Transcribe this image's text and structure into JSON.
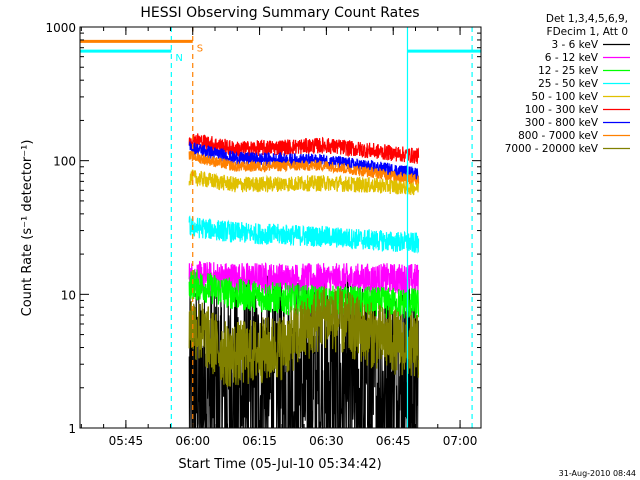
{
  "chart_data": {
    "type": "line",
    "title": "HESSI Observing Summary Count Rates",
    "xlabel": "Start Time (05-Jul-10 05:34:42)",
    "ylabel": "Count Rate (s⁻¹ detector⁻¹)",
    "x_unit": "minutes after 05:34:42",
    "xlim": [
      0,
      90
    ],
    "ylim": [
      1,
      1000
    ],
    "yscale": "log",
    "xticks": [
      {
        "label": "05:45",
        "value": 10.3
      },
      {
        "label": "06:00",
        "value": 25.3
      },
      {
        "label": "06:15",
        "value": 40.3
      },
      {
        "label": "06:30",
        "value": 55.3
      },
      {
        "label": "06:45",
        "value": 70.3
      },
      {
        "label": "07:00",
        "value": 85.3
      }
    ],
    "yticks": [
      {
        "label": "1",
        "value": 1
      },
      {
        "label": "10",
        "value": 10
      },
      {
        "label": "100",
        "value": 100
      },
      {
        "label": "1000",
        "value": 1000
      }
    ],
    "legend": {
      "header": [
        "Det 1,3,4,5,6,9,",
        "FDecim 1, Att 0"
      ],
      "placement": "right"
    },
    "series": [
      {
        "name": "3 - 6 keV",
        "color": "#000000",
        "start": 24.5,
        "end": 76.0,
        "values": [
          [
            25,
            1.8
          ],
          [
            76,
            1.8
          ]
        ],
        "noise": 0.9
      },
      {
        "name": "6 - 12 keV",
        "color": "#ff00ff",
        "start": 24.5,
        "end": 76.0,
        "values": [
          [
            25,
            13.5
          ],
          [
            50,
            13
          ],
          [
            76,
            13
          ]
        ],
        "noise": 0.12
      },
      {
        "name": "12 - 25 keV",
        "color": "#00ff00",
        "start": 24.5,
        "end": 76.0,
        "values": [
          [
            25,
            12
          ],
          [
            35,
            10
          ],
          [
            50,
            9
          ],
          [
            76,
            8.5
          ]
        ],
        "noise": 0.12
      },
      {
        "name": "25 - 50 keV",
        "color": "#00ffff",
        "start": 24.5,
        "end": 76.0,
        "values": [
          [
            25,
            32
          ],
          [
            35,
            29
          ],
          [
            55,
            27
          ],
          [
            76,
            24
          ]
        ],
        "noise": 0.08
      },
      {
        "name": "50 - 100 keV",
        "color": "#e0c000",
        "start": 24.5,
        "end": 76.0,
        "values": [
          [
            25,
            75
          ],
          [
            35,
            66
          ],
          [
            55,
            68
          ],
          [
            76,
            63
          ]
        ],
        "noise": 0.06
      },
      {
        "name": "100 - 300 keV",
        "color": "#ff0000",
        "start": 24.5,
        "end": 76.0,
        "values": [
          [
            25,
            145
          ],
          [
            35,
            122
          ],
          [
            55,
            130
          ],
          [
            76,
            108
          ]
        ],
        "noise": 0.06
      },
      {
        "name": "300 - 800 keV",
        "color": "#0000ff",
        "start": 24.5,
        "end": 76.0,
        "values": [
          [
            25,
            125
          ],
          [
            35,
            104
          ],
          [
            55,
            100
          ],
          [
            76,
            80
          ]
        ],
        "noise": 0.05
      },
      {
        "name": "800 - 7000 keV",
        "color": "#ff8000",
        "start": 24.5,
        "end": 76.0,
        "values": [
          [
            25,
            108
          ],
          [
            35,
            90
          ],
          [
            55,
            92
          ],
          [
            76,
            72
          ]
        ],
        "noise": 0.04
      },
      {
        "name": "7000 - 20000 keV",
        "color": "#808000",
        "start": 24.5,
        "end": 76.0,
        "values": [
          [
            25,
            6
          ],
          [
            33,
            3.5
          ],
          [
            45,
            4
          ],
          [
            55,
            7
          ],
          [
            65,
            5
          ],
          [
            76,
            4
          ]
        ],
        "noise": 0.25
      }
    ],
    "flags": [
      {
        "label": "S",
        "color": "#ff8000",
        "start": 0,
        "end": 25.3,
        "value": 780
      },
      {
        "label": "N",
        "color": "#00ffff",
        "start": 0,
        "end": 20.5,
        "value": 660
      },
      {
        "label": "",
        "color": "#00ffff",
        "start": 73.5,
        "end": 90,
        "value": 660
      }
    ],
    "vlines": [
      {
        "color": "#00ffff",
        "x": 20.5,
        "style": "dashed"
      },
      {
        "color": "#ff8000",
        "x": 25.3,
        "style": "dashed"
      },
      {
        "color": "#00ffff",
        "x": 73.5,
        "style": "solid"
      },
      {
        "color": "#00ffff",
        "x": 88.0,
        "style": "dashed"
      }
    ],
    "footer": "31-Aug-2010 08:44"
  }
}
